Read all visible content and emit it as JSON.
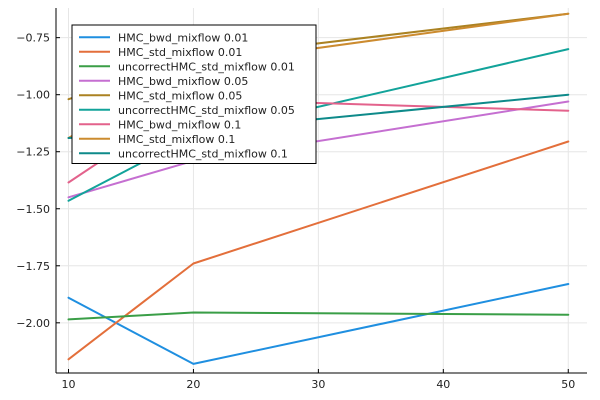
{
  "chart_data": {
    "type": "line",
    "title": "",
    "xlabel": "",
    "ylabel": "",
    "x": [
      10,
      20,
      30,
      40,
      50
    ],
    "xlim": [
      9,
      51.5
    ],
    "ylim": [
      -2.22,
      -0.62
    ],
    "x_ticks": [
      "10",
      "20",
      "30",
      "40",
      "50"
    ],
    "x_tick_values": [
      10,
      20,
      30,
      40,
      50
    ],
    "y_ticks": [
      "−2.00",
      "−1.75",
      "−1.50",
      "−1.25",
      "−1.00",
      "−0.75"
    ],
    "y_tick_values": [
      -2.0,
      -1.75,
      -1.5,
      -1.25,
      -1.0,
      -0.75
    ],
    "grid": true,
    "legend_position": "top-left",
    "series": [
      {
        "name": "HMC_bwd_mixflow 0.01",
        "color": "#1f8fe0",
        "x": [
          10,
          20,
          50
        ],
        "y": [
          -1.89,
          -2.18,
          -1.83
        ]
      },
      {
        "name": "HMC_std_mixflow 0.01",
        "color": "#e36f3b",
        "x": [
          10,
          20,
          50
        ],
        "y": [
          -2.16,
          -1.74,
          -1.205
        ]
      },
      {
        "name": "uncorrectHMC_std_mixflow 0.01",
        "color": "#3a9e47",
        "x": [
          10,
          20,
          50
        ],
        "y": [
          -1.985,
          -1.955,
          -1.965
        ]
      },
      {
        "name": "HMC_bwd_mixflow 0.05",
        "color": "#c56fd1",
        "x": [
          10,
          20,
          50
        ],
        "y": [
          -1.45,
          -1.29,
          -1.03
        ]
      },
      {
        "name": "HMC_std_mixflow 0.05",
        "color": "#ab8222",
        "x": [
          10,
          20,
          50
        ],
        "y": [
          -1.02,
          -0.84,
          -0.645
        ]
      },
      {
        "name": "uncorrectHMC_std_mixflow 0.05",
        "color": "#12a39a",
        "x": [
          10,
          20,
          50
        ],
        "y": [
          -1.465,
          -1.18,
          -0.8
        ]
      },
      {
        "name": "HMC_bwd_mixflow 0.1",
        "color": "#e3628c",
        "x": [
          10,
          20,
          50
        ],
        "y": [
          -1.385,
          -1.02,
          -1.07
        ]
      },
      {
        "name": "HMC_std_mixflow 0.1",
        "color": "#cc8b2f",
        "x": [
          10,
          20,
          50
        ],
        "y": [
          -1.19,
          -0.87,
          -0.645
        ]
      },
      {
        "name": "uncorrectHMC_std_mixflow 0.1",
        "color": "#0e8a8a",
        "x": [
          10,
          20,
          50
        ],
        "y": [
          -1.19,
          -1.16,
          -1.0
        ]
      }
    ]
  }
}
